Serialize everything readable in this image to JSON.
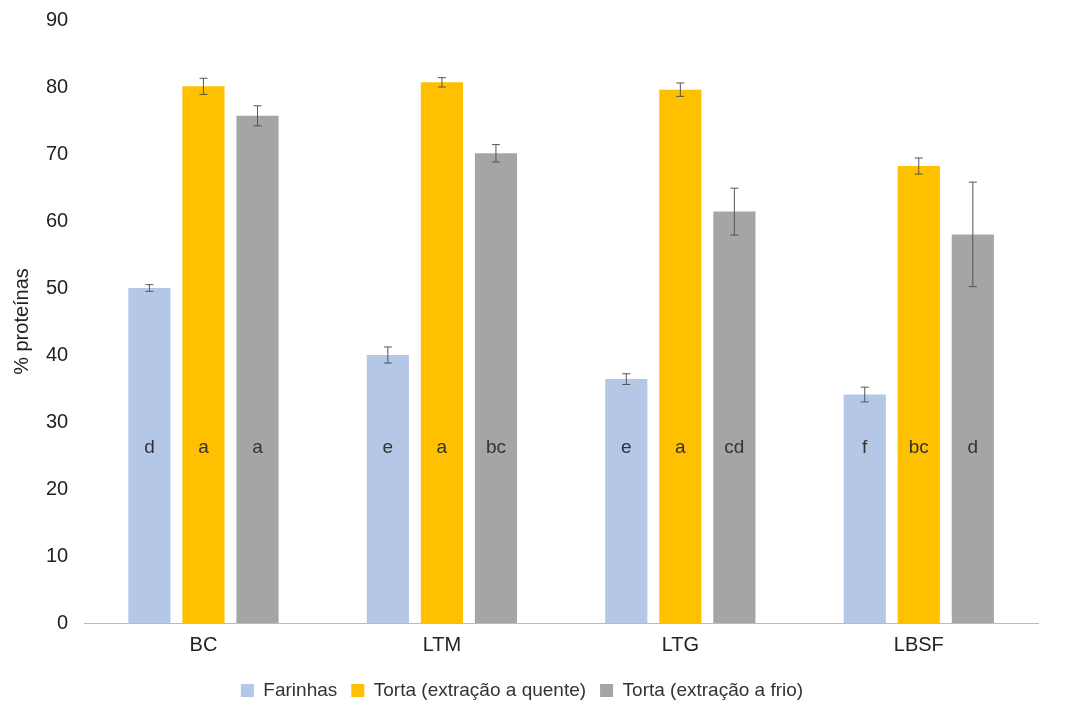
{
  "chart_data": {
    "type": "bar",
    "ylabel": "% proteínas",
    "categories": [
      "BC",
      "LTM",
      "LTG",
      "LBSF"
    ],
    "series": [
      {
        "name": "Farinhas",
        "color": "#b4c7e7",
        "values": [
          50,
          40,
          36.4,
          34.1
        ],
        "errors": [
          0.5,
          1.2,
          0.8,
          1.1
        ],
        "value_labels": [
          "d",
          "e",
          "e",
          "f"
        ]
      },
      {
        "name": "Torta (extração a quente)",
        "color": "#ffc000",
        "values": [
          80.1,
          80.7,
          79.6,
          68.2
        ],
        "errors": [
          1.2,
          0.7,
          1,
          1.2
        ],
        "value_labels": [
          "a",
          "a",
          "a",
          "bc"
        ]
      },
      {
        "name": "Torta (extração a frio)",
        "color": "#a5a5a5",
        "values": [
          75.7,
          70.1,
          61.4,
          58
        ],
        "errors": [
          1.5,
          1.3,
          3.5,
          7.8
        ],
        "value_labels": [
          "a",
          "bc",
          "cd",
          "d"
        ]
      }
    ],
    "ylim": [
      0,
      90
    ],
    "yticks": [
      0,
      10,
      20,
      30,
      40,
      50,
      60,
      70,
      80,
      90
    ],
    "grid": false,
    "legend": "bottom"
  }
}
